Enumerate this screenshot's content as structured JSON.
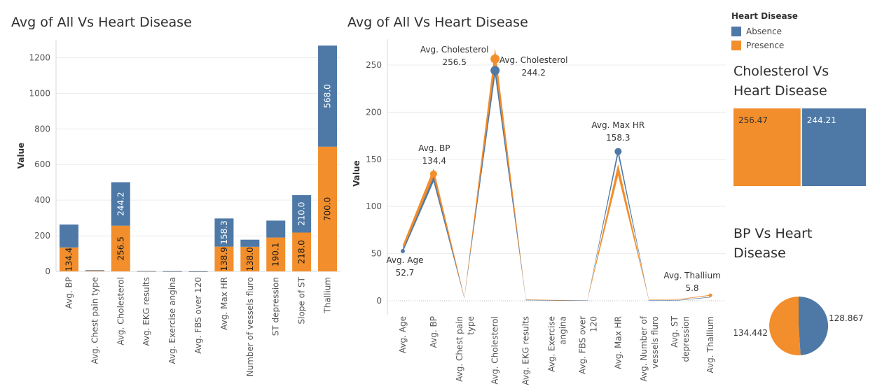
{
  "colors": {
    "absence": "#4e79a7",
    "presence": "#f28e2b",
    "grid": "#ececec",
    "axis": "#d8d8d8",
    "text": "#555555"
  },
  "legend": {
    "title": "Heart Disease",
    "items": [
      {
        "label": "Absence",
        "color": "#4e79a7"
      },
      {
        "label": "Presence",
        "color": "#f28e2b"
      }
    ]
  },
  "chart_data": [
    {
      "type": "bar",
      "title": "Avg of All Vs Heart Disease",
      "xlabel": "",
      "ylabel": "Value",
      "ylim": [
        0,
        1300
      ],
      "yticks": [
        0,
        200,
        400,
        600,
        800,
        1000,
        1200
      ],
      "categories": [
        "Avg. BP",
        "Avg. Chest pain type",
        "Avg. Cholesterol",
        "Avg. EKG results",
        "Avg. Exercise angina",
        "Avg. FBS over 120",
        "Avg. Max HR",
        "Number of vessels fluro",
        "ST depression",
        "Slope of ST",
        "Thallium"
      ],
      "series": [
        {
          "name": "Presence",
          "values": [
            134.4,
            3.8,
            256.5,
            1.2,
            0.6,
            0.2,
            138.9,
            138.0,
            190.1,
            218.0,
            700.0
          ],
          "labels": [
            "134.4",
            "",
            "256.5",
            "",
            "",
            "",
            "138.9",
            "138.0",
            "190.1",
            "218.0",
            "700.0"
          ]
        },
        {
          "name": "Absence",
          "values": [
            128.9,
            2.9,
            244.2,
            0.9,
            0.2,
            0.2,
            158.3,
            40.0,
            95.0,
            210.0,
            568.0
          ],
          "labels": [
            "",
            "",
            "244.2",
            "",
            "",
            "",
            "158.3",
            "",
            "",
            "210.0",
            "568.0"
          ]
        }
      ],
      "grid": true
    },
    {
      "type": "line",
      "title": "Avg of All Vs Heart Disease",
      "xlabel": "",
      "ylabel": "Value",
      "ylim": [
        0,
        270
      ],
      "yticks": [
        0,
        50,
        100,
        150,
        200,
        250
      ],
      "categories": [
        "Avg. Age",
        "Avg. BP",
        "Avg. Chest pain type",
        "Avg. Cholesterol",
        "Avg. EKG results",
        "Avg. Exercise angina",
        "Avg. FBS over 120",
        "Avg. Max HR",
        "Avg. Number of vessels fluro",
        "Avg. ST depression",
        "Avg. Thallium"
      ],
      "series": [
        {
          "name": "Presence",
          "values": [
            56.6,
            134.4,
            3.6,
            256.5,
            1.2,
            0.6,
            0.2,
            138.9,
            1.1,
            1.6,
            5.8
          ]
        },
        {
          "name": "Absence",
          "values": [
            52.7,
            128.9,
            2.8,
            244.2,
            0.8,
            0.2,
            0.2,
            158.3,
            0.3,
            0.6,
            3.8
          ]
        }
      ],
      "annotations": [
        {
          "label": "Avg. Age",
          "value": "52.7"
        },
        {
          "label": "Avg. BP",
          "value": "134.4"
        },
        {
          "label": "Avg. Cholesterol",
          "value": "256.5"
        },
        {
          "label": "Avg. Cholesterol",
          "value": "244.2"
        },
        {
          "label": "Avg. Max HR",
          "value": "158.3"
        },
        {
          "label": "Avg. Thallium",
          "value": "5.8"
        }
      ],
      "grid": true
    },
    {
      "type": "treemap",
      "title": "Cholesterol Vs Heart Disease",
      "items": [
        {
          "name": "Presence",
          "value": 256.47,
          "label": "256.47"
        },
        {
          "name": "Absence",
          "value": 244.21,
          "label": "244.21"
        }
      ]
    },
    {
      "type": "pie",
      "title": "BP Vs Heart Disease",
      "slices": [
        {
          "name": "Absence",
          "value": 128.867,
          "label": "128.867"
        },
        {
          "name": "Presence",
          "value": 134.442,
          "label": "134.442"
        }
      ]
    }
  ]
}
